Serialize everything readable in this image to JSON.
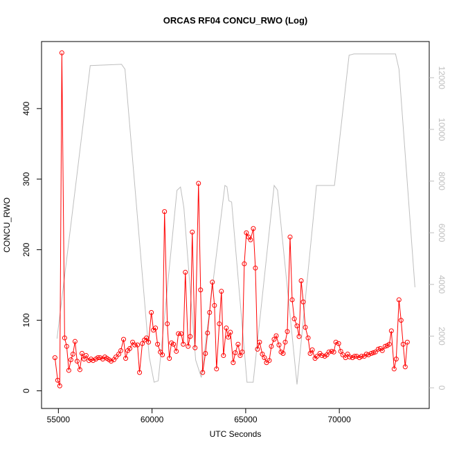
{
  "chart_data": {
    "type": "line",
    "title": "ORCAS RF04 CONCU_RWO (Log)",
    "x_label": "UTC Seconds",
    "y_label": "CONCU_RWO",
    "xlim": [
      54100,
      74800
    ],
    "xticks": [
      55000,
      60000,
      65000,
      70000
    ],
    "ylim": [
      -25,
      495
    ],
    "yticks": [
      0,
      100,
      200,
      300,
      400
    ],
    "y2lim": [
      -800,
      13400
    ],
    "y2ticks": [
      0,
      2000,
      4000,
      6000,
      8000,
      10000,
      12000
    ],
    "y2_color": "#bebebe",
    "series": [
      {
        "color": "#ff0000",
        "markers": true,
        "x": [
          54815,
          54963,
          55074,
          55185,
          55333,
          55444,
          55555,
          55667,
          55778,
          55889,
          56000,
          56148,
          56259,
          56370,
          56481,
          56630,
          56741,
          56852,
          57000,
          57111,
          57222,
          57370,
          57481,
          57593,
          57704,
          57815,
          57963,
          58074,
          58222,
          58333,
          58481,
          58593,
          58704,
          58815,
          58963,
          59074,
          59222,
          59333,
          59481,
          59593,
          59704,
          59815,
          59963,
          60074,
          60185,
          60296,
          60444,
          60555,
          60667,
          60815,
          60926,
          61037,
          61148,
          61296,
          61407,
          61555,
          61667,
          61778,
          61926,
          62037,
          62148,
          62296,
          62481,
          62593,
          62704,
          62852,
          62963,
          63074,
          63222,
          63333,
          63444,
          63593,
          63704,
          63815,
          63963,
          64074,
          64185,
          64333,
          64444,
          64593,
          64704,
          64815,
          64926,
          65037,
          65148,
          65259,
          65407,
          65518,
          65630,
          65741,
          65889,
          66000,
          66111,
          66259,
          66370,
          66518,
          66630,
          66778,
          66889,
          67000,
          67111,
          67222,
          67370,
          67481,
          67593,
          67741,
          67852,
          67963,
          68074,
          68185,
          68333,
          68444,
          68555,
          68704,
          68815,
          68963,
          69074,
          69222,
          69333,
          69444,
          69593,
          69704,
          69815,
          69963,
          70074,
          70185,
          70333,
          70444,
          70555,
          70704,
          70815,
          70926,
          71074,
          71185,
          71333,
          71444,
          71555,
          71704,
          71815,
          71926,
          72074,
          72185,
          72296,
          72444,
          72555,
          72667,
          72778,
          72926,
          73037,
          73185,
          73296,
          73407,
          73518,
          73630
        ],
        "values": [
          47,
          15,
          7,
          479,
          75,
          63,
          29,
          44,
          52,
          70,
          42,
          30,
          53,
          45,
          50,
          43,
          45,
          43,
          45,
          47,
          47,
          45,
          48,
          46,
          44,
          42,
          44,
          48,
          52,
          57,
          73,
          46,
          57,
          60,
          69,
          65,
          65,
          26,
          67,
          72,
          75,
          69,
          111,
          86,
          89,
          66,
          55,
          51,
          254,
          95,
          46,
          68,
          66,
          56,
          81,
          81,
          66,
          168,
          63,
          77,
          225,
          61,
          294,
          143,
          26,
          53,
          82,
          111,
          154,
          121,
          31,
          95,
          141,
          50,
          89,
          76,
          83,
          40,
          54,
          66,
          50,
          55,
          180,
          224,
          218,
          214,
          230,
          174,
          59,
          69,
          52,
          47,
          40,
          43,
          63,
          73,
          78,
          65,
          55,
          53,
          69,
          84,
          218,
          129,
          102,
          92,
          77,
          156,
          126,
          90,
          75,
          53,
          58,
          46,
          49,
          53,
          50,
          49,
          51,
          55,
          56,
          55,
          69,
          67,
          56,
          51,
          47,
          52,
          48,
          47,
          49,
          49,
          47,
          49,
          49,
          52,
          51,
          53,
          54,
          55,
          59,
          60,
          57,
          63,
          64,
          66,
          85,
          31,
          45,
          129,
          100,
          66,
          34,
          69
        ]
      },
      {
        "color": "#bebebe",
        "axis": "y2",
        "markers": false,
        "x": [
          54926,
          56700,
          58370,
          58555,
          59850,
          60110,
          60330,
          61330,
          61520,
          61700,
          62330,
          62630,
          63890,
          64000,
          64100,
          64250,
          65070,
          65400,
          66520,
          66700,
          67740,
          68780,
          69740,
          70520,
          70780,
          73000,
          73185,
          74037
        ],
        "values": [
          1900,
          12470,
          12520,
          12330,
          1200,
          215,
          270,
          7640,
          7770,
          6970,
          1070,
          400,
          7830,
          7780,
          7240,
          7190,
          215,
          215,
          7830,
          7650,
          130,
          7830,
          7830,
          12870,
          12920,
          12920,
          12330,
          3890
        ]
      }
    ]
  }
}
